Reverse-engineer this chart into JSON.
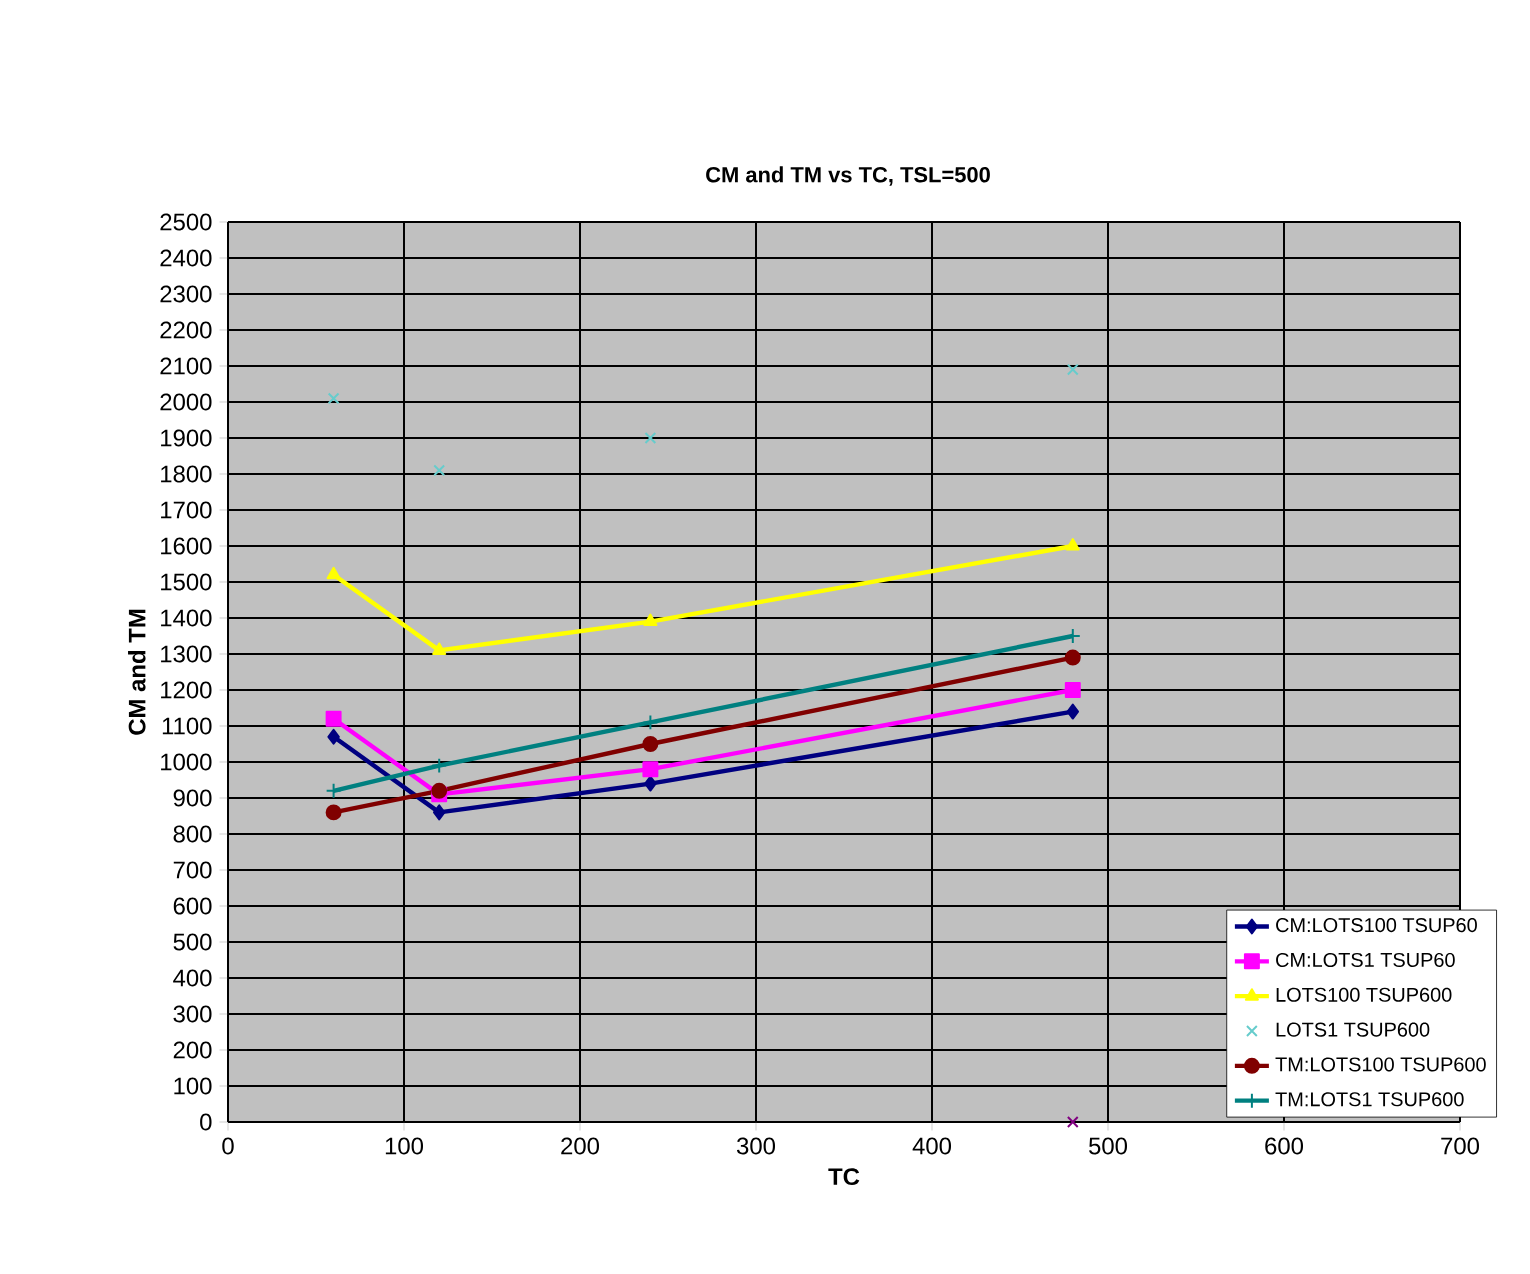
{
  "chart_data": {
    "type": "line",
    "title": "CM and TM vs TC, TSL=500",
    "xlabel": "TC",
    "ylabel": "CM and TM",
    "x": [
      60,
      120,
      240,
      480
    ],
    "series": [
      {
        "name": "CM:LOTS100 TSUP60",
        "color": "#000080",
        "marker": "diamond",
        "values": [
          1070,
          860,
          940,
          1140
        ]
      },
      {
        "name": "CM:LOTS1 TSUP60",
        "color": "#ff00ff",
        "marker": "square",
        "values": [
          1120,
          910,
          980,
          1200
        ]
      },
      {
        "name": "LOTS100 TSUP600",
        "color": "#ffff00",
        "marker": "triangle",
        "values": [
          1520,
          1310,
          1390,
          1600
        ]
      },
      {
        "name": "LOTS1 TSUP600",
        "type": "scatter",
        "color": "#66cccc",
        "marker": "cross",
        "values": [
          2010,
          1810,
          1900,
          2090
        ]
      },
      {
        "name": "TM:LOTS100 TSUP600",
        "color": "#800000",
        "marker": "circle",
        "values": [
          860,
          920,
          1050,
          1290
        ]
      },
      {
        "name": "TM:LOTS1 TSUP600",
        "color": "#008080",
        "marker": "plus",
        "values": [
          920,
          990,
          1110,
          1350
        ]
      },
      {
        "type": "scatter",
        "color": "#800080",
        "marker": "cross",
        "x": [
          480
        ],
        "values": [
          0
        ]
      }
    ],
    "xlim": [
      0,
      700
    ],
    "xticks": [
      0,
      100,
      200,
      300,
      400,
      500,
      600,
      700
    ],
    "ylim": [
      0,
      2500
    ],
    "yticks": [
      0,
      100,
      200,
      300,
      400,
      500,
      600,
      700,
      800,
      900,
      1000,
      1100,
      1200,
      1300,
      1400,
      1500,
      1600,
      1700,
      1800,
      1900,
      2000,
      2100,
      2200,
      2300,
      2400,
      2500
    ],
    "grid": true,
    "legend": "bottom right"
  }
}
